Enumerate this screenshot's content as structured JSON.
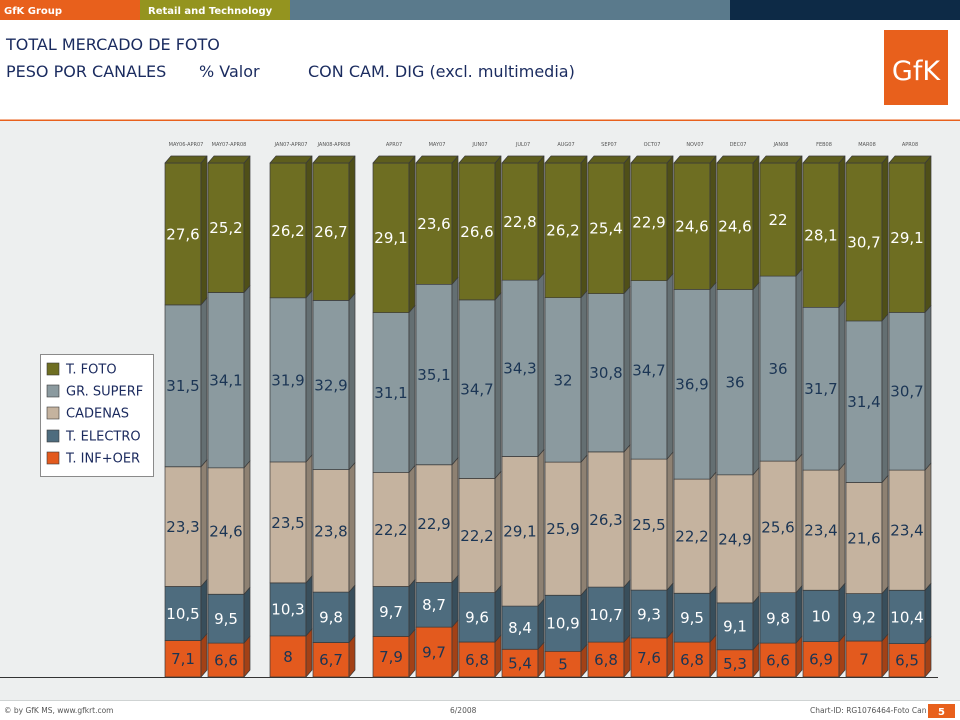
{
  "header": {
    "brand": "GfK Group",
    "division": "Retail and Technology"
  },
  "title": {
    "line1": "TOTAL MERCADO DE FOTO",
    "line2_channels": "PESO POR CANALES",
    "line2_measure": "% Valor",
    "line2_scope": "CON CAM. DIG (excl. multimedia)"
  },
  "logo": {
    "text": "GfK"
  },
  "theme": {
    "brand_orange": "#E8601C",
    "division_olive": "#94941F",
    "strip_blue": "#5A7A8C",
    "strip_navy": "#0D2A46",
    "title_navy": "#1A2B5F",
    "plot_background": "#EDEFEF"
  },
  "chart_data": {
    "type": "bar",
    "stacked": true,
    "ylim": [
      0,
      100
    ],
    "grid": false,
    "legend": "left",
    "categories": [
      "MAY06-APR07",
      "MAY07-APR08",
      "JAN07-APR07",
      "JAN08-APR08",
      "APR07",
      "MAY07",
      "JUN07",
      "JUL07",
      "AUG07",
      "SEP07",
      "OCT07",
      "NOV07",
      "DEC07",
      "JAN08",
      "FEB08",
      "MAR08",
      "APR08"
    ],
    "series": [
      {
        "name": "T. FOTO",
        "color": "#6E6E22",
        "label_color": "#FFFFFF",
        "values": [
          27.6,
          25.2,
          26.2,
          26.7,
          29.1,
          23.6,
          26.6,
          22.8,
          26.2,
          25.4,
          22.9,
          24.6,
          24.6,
          22,
          28.1,
          30.7,
          29.1
        ]
      },
      {
        "name": "GR. SUPERF",
        "color": "#8B9A9F",
        "label_color": "#1B3554",
        "values": [
          31.5,
          34.1,
          31.9,
          32.9,
          31.1,
          35.1,
          34.7,
          34.3,
          32,
          30.8,
          34.7,
          36.9,
          36,
          36,
          31.7,
          31.4,
          30.7
        ]
      },
      {
        "name": "CADENAS",
        "color": "#C5B39F",
        "label_color": "#1B3554",
        "values": [
          23.3,
          24.6,
          23.5,
          23.8,
          22.2,
          22.9,
          22.2,
          29.1,
          25.9,
          26.3,
          25.5,
          22.2,
          24.9,
          25.6,
          23.4,
          21.6,
          23.4
        ]
      },
      {
        "name": "T. ELECTRO",
        "color": "#4E6C7E",
        "label_color": "#FFFFFF",
        "values": [
          10.5,
          9.5,
          10.3,
          9.8,
          9.7,
          8.7,
          9.6,
          8.4,
          10.9,
          10.7,
          9.3,
          9.5,
          9.1,
          9.8,
          10,
          9.2,
          10.4
        ]
      },
      {
        "name": "T. INF+OER",
        "color": "#E35A1E",
        "label_color": "#1B3554",
        "values": [
          7.1,
          6.6,
          8,
          6.7,
          7.9,
          9.7,
          6.8,
          5.4,
          5,
          6.8,
          7.6,
          6.8,
          5.3,
          6.6,
          6.9,
          7,
          6.5
        ]
      }
    ]
  },
  "footer": {
    "copyright": "© by GfK MS, www.gfkrt.com",
    "date": "6/2008",
    "chart_id": "Chart-ID: RG1076464-Foto Can",
    "page": "5"
  }
}
